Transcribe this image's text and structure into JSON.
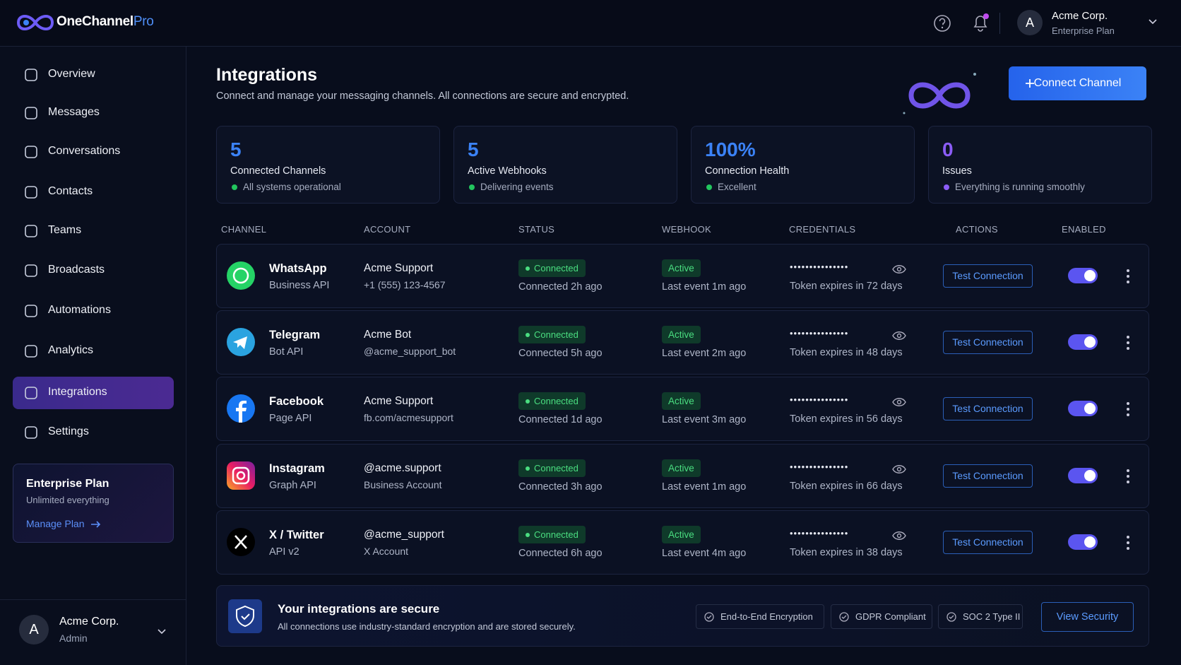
{
  "header": {
    "brand": "OneChannel",
    "brand_suffix": "Pro",
    "avatar": "A",
    "user_name": "Acme Corp.",
    "user_plan": "Enterprise Plan"
  },
  "nav": [
    {
      "label": "Overview"
    },
    {
      "label": "Messages"
    },
    {
      "label": "Conversations"
    },
    {
      "label": "Contacts"
    },
    {
      "label": "Teams"
    },
    {
      "label": "Broadcasts"
    },
    {
      "label": "Automations"
    },
    {
      "label": "Analytics"
    },
    {
      "label": "Integrations",
      "active": true
    },
    {
      "label": "Settings"
    }
  ],
  "plan_card": {
    "title": "Enterprise Plan",
    "subtitle": "Unlimited everything",
    "link": "Manage Plan"
  },
  "sidebar_user": {
    "avatar": "A",
    "name": "Acme Corp.",
    "role": "Admin"
  },
  "page": {
    "title": "Integrations",
    "subtitle": "Connect and manage your messaging channels. All connections are secure and encrypted.",
    "button": "Connect Channel"
  },
  "stats": [
    {
      "value": "5",
      "label": "Connected Channels",
      "note": "All systems operational",
      "color": "#3b82f6",
      "dot": "#22c55e"
    },
    {
      "value": "5",
      "label": "Active Webhooks",
      "note": "Delivering events",
      "color": "#3b82f6",
      "dot": "#22c55e"
    },
    {
      "value": "100%",
      "label": "Connection Health",
      "note": "Excellent",
      "color": "#3b82f6",
      "dot": "#22c55e"
    },
    {
      "value": "0",
      "label": "Issues",
      "note": "Everything is running smoothly",
      "color": "#8b5cf6",
      "dot": "#8b5cf6"
    }
  ],
  "table": {
    "columns": [
      "CHANNEL",
      "ACCOUNT",
      "STATUS",
      "WEBHOOK",
      "CREDENTIALS",
      "ACTIONS",
      "ENABLED"
    ],
    "rows": [
      {
        "channel": "WhatsApp",
        "api": "Business API",
        "account": "Acme Support",
        "account_detail": "+1 (555) 123-4567",
        "status": "Connected",
        "status_time": "Connected 2h ago",
        "webhook": "Active",
        "webhook_time": "Last event 1m ago",
        "credentials": "•••••••••••••••",
        "token": "Token expires in 72 days",
        "action": "Test Connection",
        "enabled": true
      },
      {
        "channel": "Telegram",
        "api": "Bot API",
        "account": "Acme Bot",
        "account_detail": "@acme_support_bot",
        "status": "Connected",
        "status_time": "Connected 5h ago",
        "webhook": "Active",
        "webhook_time": "Last event 2m ago",
        "credentials": "•••••••••••••••",
        "token": "Token expires in 48 days",
        "action": "Test Connection",
        "enabled": true
      },
      {
        "channel": "Facebook",
        "api": "Page API",
        "account": "Acme Support",
        "account_detail": "fb.com/acmesupport",
        "status": "Connected",
        "status_time": "Connected 1d ago",
        "webhook": "Active",
        "webhook_time": "Last event 3m ago",
        "credentials": "•••••••••••••••",
        "token": "Token expires in 56 days",
        "action": "Test Connection",
        "enabled": true
      },
      {
        "channel": "Instagram",
        "api": "Graph API",
        "account": "@acme.support",
        "account_detail": "Business Account",
        "status": "Connected",
        "status_time": "Connected 3h ago",
        "webhook": "Active",
        "webhook_time": "Last event 1m ago",
        "credentials": "•••••••••••••••",
        "token": "Token expires in 66 days",
        "action": "Test Connection",
        "enabled": true
      },
      {
        "channel": "X / Twitter",
        "api": "API v2",
        "account": "@acme_support",
        "account_detail": "X Account",
        "status": "Connected",
        "status_time": "Connected 6h ago",
        "webhook": "Active",
        "webhook_time": "Last event 4m ago",
        "credentials": "•••••••••••••••",
        "token": "Token expires in 38 days",
        "action": "Test Connection",
        "enabled": true
      }
    ]
  },
  "security": {
    "title": "Your integrations are secure",
    "text": "All connections use industry-standard encryption and are stored securely.",
    "badges": [
      "End-to-End Encryption",
      "GDPR Compliant",
      "SOC 2 Type II"
    ],
    "button": "View Security"
  }
}
